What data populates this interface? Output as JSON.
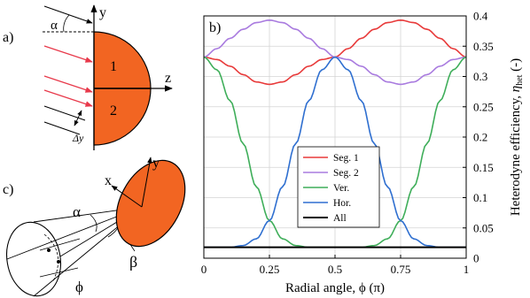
{
  "panels": {
    "a": {
      "label": "a)",
      "axis_y": "y",
      "axis_z": "z",
      "angle": "α",
      "seg1": "1",
      "seg2": "2",
      "delta_y": "Δy",
      "fill_color": "#F26522",
      "arrow_color": "#E8384A"
    },
    "c": {
      "label": "c)",
      "axis_x": "x",
      "axis_y": "y",
      "alpha": "α",
      "beta": "β",
      "phi": "ϕ",
      "fill_color": "#F26522"
    }
  },
  "chart_data": {
    "type": "line",
    "panel_label": "b)",
    "xlabel": "Radial angle, ϕ (π)",
    "ylabel_main": "Heterodyne efficiency,",
    "ylabel_symbol": "η",
    "ylabel_sub": "het",
    "ylabel_unit": "(-)",
    "xlim": [
      0,
      1
    ],
    "ylim": [
      0,
      0.4
    ],
    "xticks": [
      0,
      0.25,
      0.5,
      0.75,
      1
    ],
    "xtick_labels": [
      "0",
      "0.25",
      "0.5",
      "0.75",
      "1"
    ],
    "yticks": [
      0,
      0.05,
      0.1,
      0.15,
      0.2,
      0.25,
      0.3,
      0.35,
      0.4
    ],
    "ytick_labels": [
      "0",
      "0.05",
      "0.1",
      "0.15",
      "0.2",
      "0.25",
      "0.3",
      "0.35",
      "0.4"
    ],
    "grid": true,
    "legend_position": "center-right",
    "x": [
      0,
      0.05,
      0.1,
      0.15,
      0.2,
      0.25,
      0.3,
      0.35,
      0.4,
      0.45,
      0.5,
      0.55,
      0.6,
      0.65,
      0.7,
      0.75,
      0.8,
      0.85,
      0.9,
      0.95,
      1
    ],
    "series": [
      {
        "name": "Seg. 1",
        "color": "#E83A3A",
        "values": [
          0.332,
          0.328,
          0.317,
          0.303,
          0.291,
          0.287,
          0.291,
          0.303,
          0.317,
          0.328,
          0.332,
          0.346,
          0.363,
          0.378,
          0.389,
          0.393,
          0.389,
          0.378,
          0.363,
          0.346,
          0.332
        ]
      },
      {
        "name": "Seg. 2",
        "color": "#A97BDF",
        "values": [
          0.332,
          0.346,
          0.363,
          0.378,
          0.389,
          0.393,
          0.389,
          0.378,
          0.363,
          0.346,
          0.332,
          0.328,
          0.317,
          0.303,
          0.291,
          0.287,
          0.291,
          0.303,
          0.317,
          0.328,
          0.332
        ]
      },
      {
        "name": "Ver.",
        "color": "#3FAE5A",
        "values": [
          0.332,
          0.311,
          0.26,
          0.189,
          0.118,
          0.062,
          0.032,
          0.021,
          0.018,
          0.018,
          0.018,
          0.018,
          0.018,
          0.021,
          0.032,
          0.062,
          0.118,
          0.189,
          0.26,
          0.311,
          0.332
        ]
      },
      {
        "name": "Hor.",
        "color": "#2F6FD0",
        "values": [
          0.018,
          0.018,
          0.018,
          0.021,
          0.032,
          0.062,
          0.118,
          0.189,
          0.26,
          0.311,
          0.332,
          0.311,
          0.26,
          0.189,
          0.118,
          0.062,
          0.032,
          0.021,
          0.018,
          0.018,
          0.018
        ]
      },
      {
        "name": "All",
        "color": "#000000",
        "values": [
          0.018,
          0.018,
          0.018,
          0.018,
          0.018,
          0.018,
          0.018,
          0.018,
          0.018,
          0.018,
          0.018,
          0.018,
          0.018,
          0.018,
          0.018,
          0.018,
          0.018,
          0.018,
          0.018,
          0.018,
          0.018
        ]
      }
    ]
  }
}
